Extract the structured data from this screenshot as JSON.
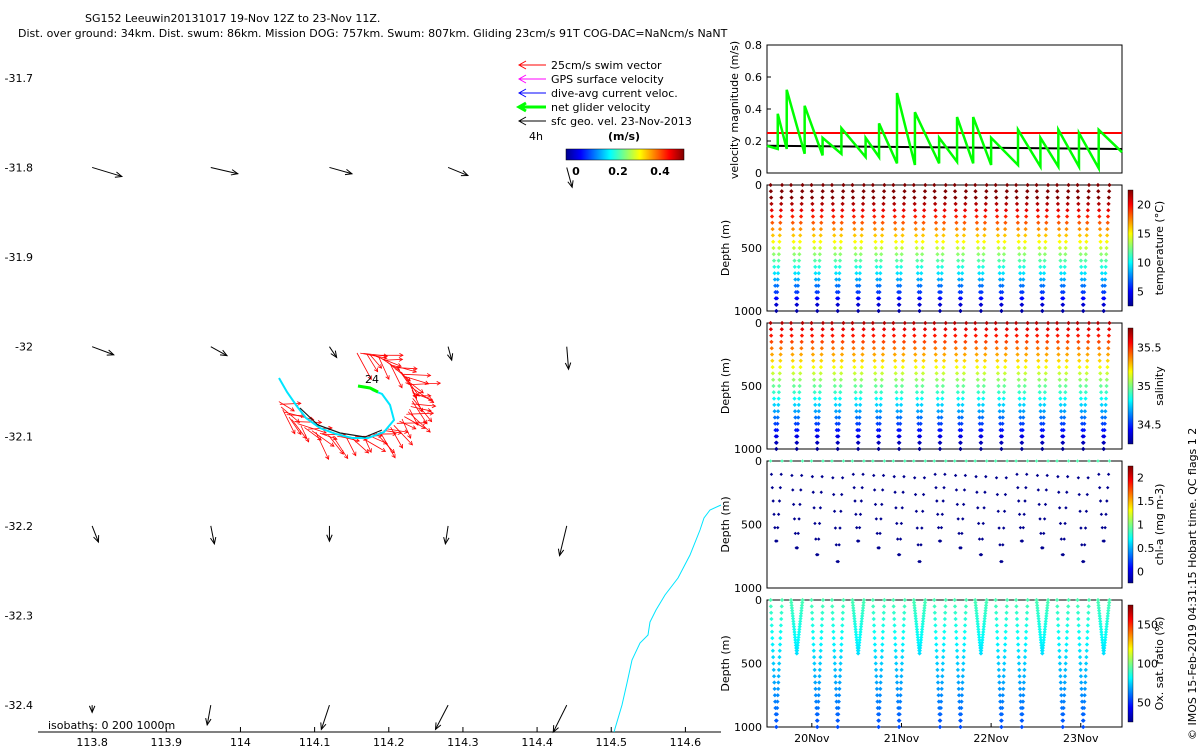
{
  "title": {
    "line1": "SG152 Leeuwin20131017 19-Nov 12Z to 23-Nov 11Z.",
    "line2": "Dist. over ground: 34km. Dist. swum: 86km. Mission DOG: 757km. Swum: 807km. Gliding 23cm/s 91T COG-DAC=NaNcm/s NaNT"
  },
  "map": {
    "xticks": [
      "113.8",
      "113.9",
      "114",
      "114.1",
      "114.2",
      "114.3",
      "114.4",
      "114.5",
      "114.6"
    ],
    "yticks": [
      "-31.7",
      "-31.8",
      "-31.9",
      "-32",
      "-32.1",
      "-32.2",
      "-32.3",
      "-32.4"
    ],
    "xlim": [
      113.727,
      114.648
    ],
    "ylim": [
      -32.43,
      -31.66
    ],
    "legend": [
      {
        "label": "25cm/s swim vector",
        "color": "#ff0000"
      },
      {
        "label": "GPS surface velocity",
        "color": "#ff00ff"
      },
      {
        "label": "dive-avg current veloc.",
        "color": "#0000ff"
      },
      {
        "label": "net glider velocity",
        "color": "#00ff00"
      },
      {
        "label": "sfc geo. vel. 23-Nov-2013",
        "color": "#000000"
      }
    ],
    "duration_label": "4h",
    "colorbar": {
      "unit": "(m/s)",
      "ticks": [
        "0",
        "0.2",
        "0.4"
      ]
    },
    "track_label": "24",
    "isobaths_label": "isobaths: 0   200  1000m",
    "current_vectors": [
      {
        "lon": 113.8,
        "lat": -31.8,
        "u": 0.033,
        "v": -0.01
      },
      {
        "lon": 113.96,
        "lat": -31.8,
        "u": 0.03,
        "v": -0.007
      },
      {
        "lon": 114.12,
        "lat": -31.8,
        "u": 0.025,
        "v": -0.007
      },
      {
        "lon": 114.28,
        "lat": -31.8,
        "u": 0.022,
        "v": -0.009
      },
      {
        "lon": 114.44,
        "lat": -31.8,
        "u": 0.006,
        "v": -0.022
      },
      {
        "lon": 113.8,
        "lat": -32.0,
        "u": 0.024,
        "v": -0.009
      },
      {
        "lon": 113.96,
        "lat": -32.0,
        "u": 0.018,
        "v": -0.01
      },
      {
        "lon": 114.12,
        "lat": -32.0,
        "u": 0.008,
        "v": -0.012
      },
      {
        "lon": 114.28,
        "lat": -32.0,
        "u": 0.004,
        "v": -0.015
      },
      {
        "lon": 114.44,
        "lat": -32.0,
        "u": 0.002,
        "v": -0.025
      },
      {
        "lon": 113.8,
        "lat": -32.2,
        "u": 0.007,
        "v": -0.018
      },
      {
        "lon": 113.96,
        "lat": -32.2,
        "u": 0.004,
        "v": -0.02
      },
      {
        "lon": 114.12,
        "lat": -32.2,
        "u": 0.0,
        "v": -0.017
      },
      {
        "lon": 114.28,
        "lat": -32.2,
        "u": -0.003,
        "v": -0.02
      },
      {
        "lon": 114.44,
        "lat": -32.2,
        "u": -0.008,
        "v": -0.033
      },
      {
        "lon": 113.8,
        "lat": -32.4,
        "u": 0.0,
        "v": -0.008
      },
      {
        "lon": 113.96,
        "lat": -32.4,
        "u": -0.004,
        "v": -0.022
      },
      {
        "lon": 114.12,
        "lat": -32.4,
        "u": -0.009,
        "v": -0.027
      },
      {
        "lon": 114.28,
        "lat": -32.4,
        "u": -0.014,
        "v": -0.027
      },
      {
        "lon": 114.44,
        "lat": -32.4,
        "u": -0.015,
        "v": -0.03
      }
    ]
  },
  "chart_data": [
    {
      "type": "line",
      "title": "",
      "ylabel": "velocity magnitude (m/s)",
      "ylim": [
        0,
        0.8
      ],
      "yticks": [
        "0",
        "0.2",
        "0.4",
        "0.6",
        "0.8"
      ],
      "series": [
        {
          "color": "#ff0000",
          "x": [
            19.5,
            23.46
          ],
          "values": [
            0.25,
            0.25
          ]
        },
        {
          "color": "#000000",
          "x": [
            19.5,
            23.46
          ],
          "values": [
            0.17,
            0.15
          ]
        },
        {
          "color": "#00ff00",
          "x": [
            19.5,
            19.62,
            19.62,
            19.72,
            19.72,
            19.92,
            19.92,
            20.12,
            20.12,
            20.33,
            20.33,
            20.6,
            20.6,
            20.75,
            20.75,
            20.95,
            20.95,
            21.15,
            21.15,
            21.42,
            21.42,
            21.62,
            21.62,
            21.8,
            21.8,
            22.0,
            22.0,
            22.3,
            22.3,
            22.55,
            22.55,
            22.75,
            22.75,
            22.98,
            22.98,
            23.2,
            23.2,
            23.46
          ],
          "values": [
            0.17,
            0.15,
            0.37,
            0.15,
            0.52,
            0.12,
            0.42,
            0.11,
            0.22,
            0.12,
            0.28,
            0.1,
            0.22,
            0.1,
            0.31,
            0.06,
            0.5,
            0.05,
            0.38,
            0.06,
            0.22,
            0.07,
            0.35,
            0.06,
            0.35,
            0.05,
            0.22,
            0.05,
            0.27,
            0.04,
            0.22,
            0.04,
            0.27,
            0.04,
            0.25,
            0.03,
            0.27,
            0.13
          ]
        }
      ]
    },
    {
      "type": "scatter",
      "ylabel": "Depth (m)",
      "yticks": [
        "0",
        "500",
        "1000"
      ],
      "colorbar_label": "temperature (°C)",
      "colorbar_ticks": [
        "5",
        "10",
        "15",
        "20"
      ]
    },
    {
      "type": "scatter",
      "ylabel": "Depth (m)",
      "yticks": [
        "0",
        "500",
        "1000"
      ],
      "colorbar_label": "salinity",
      "colorbar_ticks": [
        "34.5",
        "35",
        "35.5"
      ]
    },
    {
      "type": "scatter",
      "ylabel": "Depth (m)",
      "yticks": [
        "0",
        "500",
        "1000"
      ],
      "colorbar_label": "chl-a (mg m-3)",
      "colorbar_ticks": [
        "0",
        "0.5",
        "1",
        "1.5",
        "2"
      ]
    },
    {
      "type": "scatter",
      "ylabel": "Depth (m)",
      "yticks": [
        "0",
        "500",
        "1000"
      ],
      "colorbar_label": "Ox. sat. ratio (%)",
      "colorbar_ticks": [
        "50",
        "100",
        "150"
      ],
      "xticks": [
        "20Nov",
        "21Nov",
        "22Nov",
        "23Nov"
      ]
    }
  ],
  "side_credit": "© IMOS 15-Feb-2019 04:31:15 Hobart time. QC flags 1  2"
}
